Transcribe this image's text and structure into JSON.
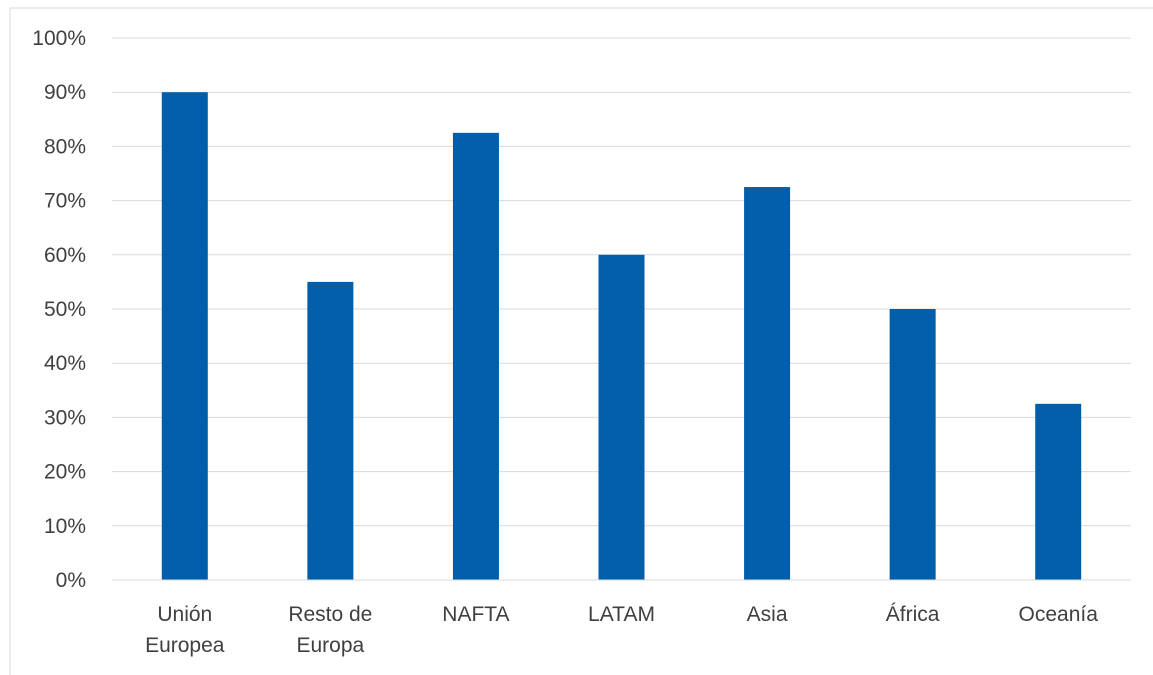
{
  "chart_data": {
    "type": "bar",
    "categories": [
      [
        "Unión",
        "Europea"
      ],
      [
        "Resto de",
        "Europa"
      ],
      [
        "NAFTA"
      ],
      [
        "LATAM"
      ],
      [
        "Asia"
      ],
      [
        "África"
      ],
      [
        "Oceanía"
      ]
    ],
    "values": [
      0.9,
      0.55,
      0.825,
      0.6,
      0.725,
      0.5,
      0.325
    ],
    "ylim": [
      0,
      1
    ],
    "yticks": [
      "0%",
      "10%",
      "20%",
      "30%",
      "40%",
      "50%",
      "60%",
      "70%",
      "80%",
      "90%",
      "100%"
    ],
    "grid": true,
    "legend": "none",
    "title": "",
    "xlabel": "",
    "ylabel": "",
    "colors": {
      "bar": "#005EAA",
      "grid": "#D9D9D9",
      "frame": "#D9D9D9",
      "text": "#404040"
    }
  }
}
